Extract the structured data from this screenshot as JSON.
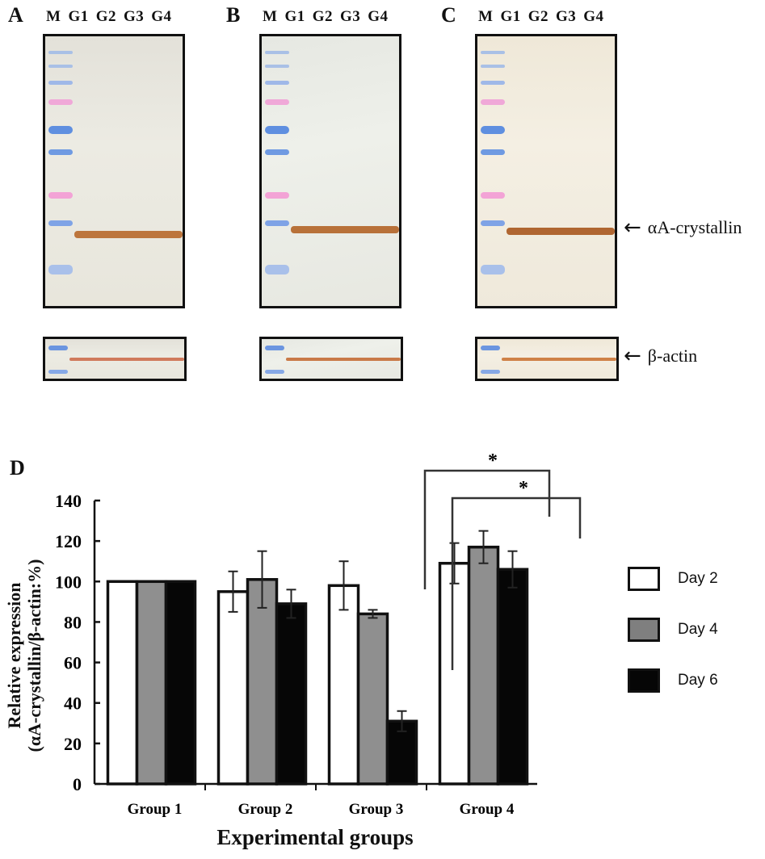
{
  "blots": {
    "lane_labels": [
      "M",
      "G1",
      "G2",
      "G3",
      "G4"
    ],
    "panels": [
      {
        "letter": "A"
      },
      {
        "letter": "B"
      },
      {
        "letter": "C"
      }
    ],
    "target_label": "αA-crystallin",
    "control_label": "β-actin",
    "arrow": "←"
  },
  "chart_panel_letter": "D",
  "chart_data": {
    "type": "bar",
    "title": "",
    "xlabel": "Experimental groups",
    "ylabel": "Relative expression",
    "ylabel_line2": "(αA-crystallin/β-actin:%)",
    "ylim": [
      0,
      140
    ],
    "yticks": [
      0,
      20,
      40,
      60,
      80,
      100,
      120,
      140
    ],
    "grid": false,
    "legend_position": "right",
    "categories": [
      "Group 1",
      "Group 2",
      "Group 3",
      "Group 4"
    ],
    "series": [
      {
        "name": "Day 2",
        "color": "#ffffff",
        "values": [
          100,
          95,
          98,
          109
        ],
        "errors": [
          0,
          10,
          12,
          10
        ]
      },
      {
        "name": "Day 4",
        "color": "#8f8f8f",
        "values": [
          100,
          101,
          84,
          117
        ],
        "errors": [
          0,
          14,
          2,
          8
        ]
      },
      {
        "name": "Day 6",
        "color": "#060606",
        "values": [
          100,
          89,
          31,
          106
        ],
        "errors": [
          0,
          7,
          5,
          9
        ]
      }
    ],
    "annotations": [
      {
        "text": "*",
        "from": "Group 3 / Day 2-4",
        "to": "Group 4 / Day 4",
        "label": "significant"
      },
      {
        "text": "*",
        "from": "Group 3 / Day 6",
        "to": "Group 4 / Day 6",
        "label": "significant"
      }
    ]
  }
}
